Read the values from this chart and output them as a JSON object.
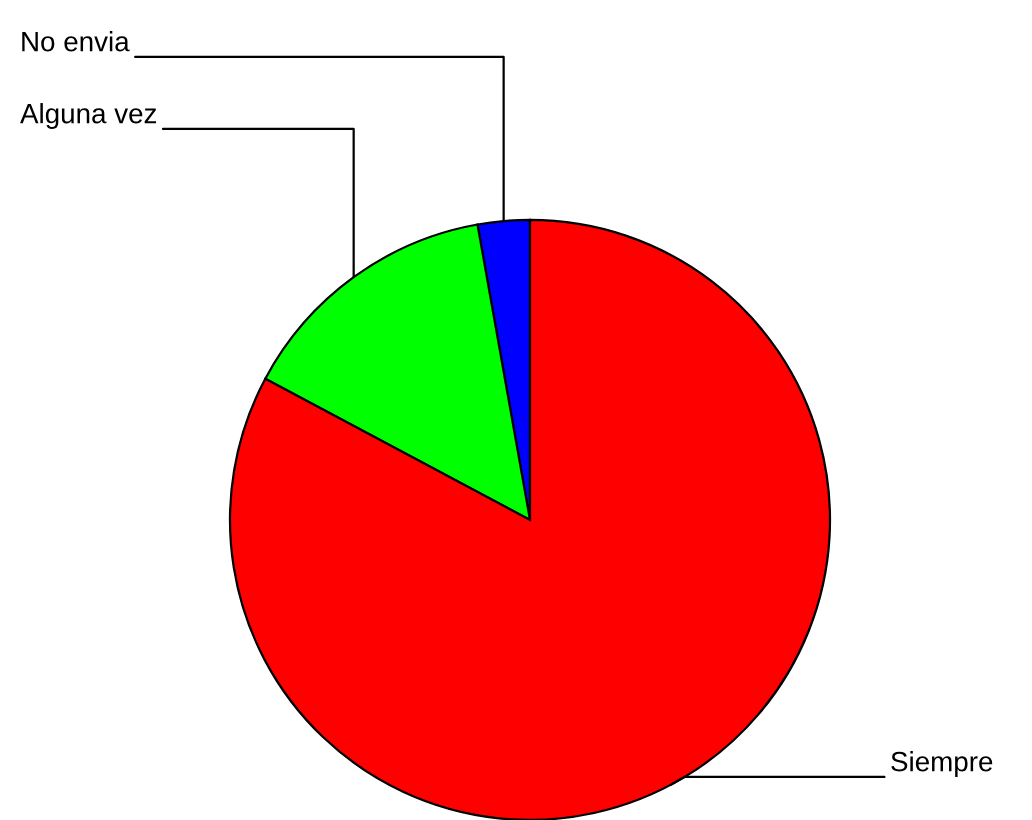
{
  "chart_data": {
    "type": "pie",
    "categories": [
      "No envia",
      "Alguna vez",
      "Siempre"
    ],
    "values": [
      2.8,
      14.4,
      82.8
    ],
    "colors": [
      "#0000ff",
      "#00ff00",
      "#ff0000"
    ],
    "legend": false
  }
}
